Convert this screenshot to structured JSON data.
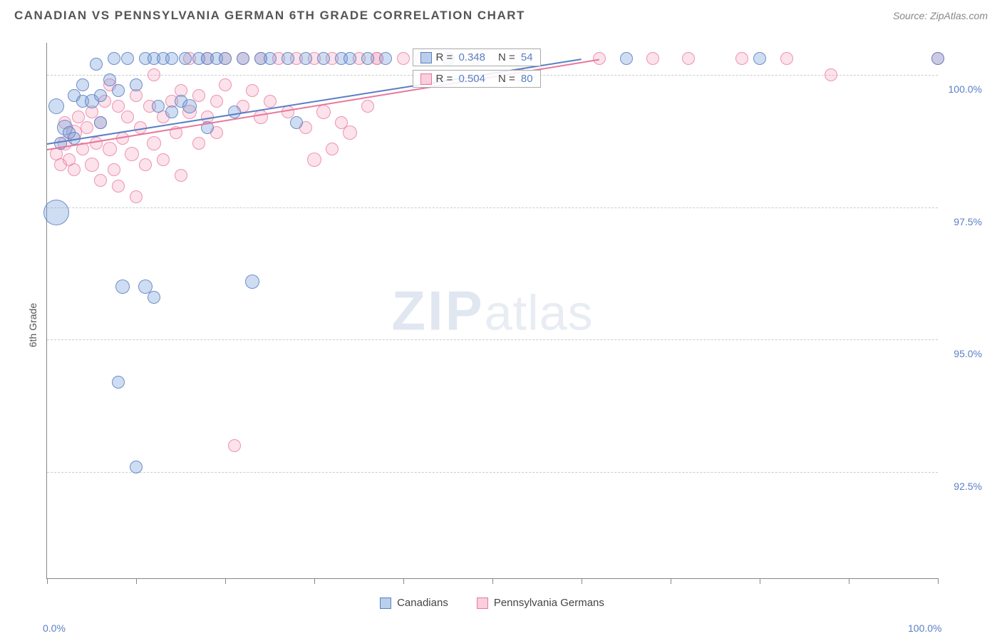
{
  "header": {
    "title": "CANADIAN VS PENNSYLVANIA GERMAN 6TH GRADE CORRELATION CHART",
    "source": "Source: ZipAtlas.com"
  },
  "chart": {
    "type": "scatter",
    "ylabel": "6th Grade",
    "xlim": [
      0,
      100
    ],
    "ylim": [
      90.5,
      100.6
    ],
    "x_ticks": [
      0,
      10,
      20,
      30,
      40,
      50,
      60,
      70,
      80,
      90,
      100
    ],
    "x_tick_labels": {
      "0": "0.0%",
      "100": "100.0%"
    },
    "y_gridlines": [
      92.5,
      95.0,
      97.5,
      100.0
    ],
    "y_tick_labels": [
      "92.5%",
      "95.0%",
      "97.5%",
      "100.0%"
    ],
    "background_color": "#ffffff",
    "grid_color": "#cccccc",
    "axis_color": "#888888",
    "label_color": "#5a7fc4",
    "marker_base_r": 9,
    "watermark": "ZIPatlas",
    "series": [
      {
        "name": "Canadians",
        "color_fill": "rgba(115,159,216,0.35)",
        "color_stroke": "#5a7fc4",
        "trend_color": "#5a7fc4",
        "R": "0.348",
        "N": "54",
        "trend": {
          "x1": 0,
          "y1": 98.7,
          "x2": 60,
          "y2": 100.3
        },
        "points": [
          {
            "x": 1,
            "y": 97.4,
            "r": 18
          },
          {
            "x": 1,
            "y": 99.4,
            "r": 11
          },
          {
            "x": 1.5,
            "y": 98.7,
            "r": 9
          },
          {
            "x": 2,
            "y": 99.0,
            "r": 11
          },
          {
            "x": 2.5,
            "y": 98.9,
            "r": 9
          },
          {
            "x": 3,
            "y": 99.6,
            "r": 9
          },
          {
            "x": 3,
            "y": 98.8,
            "r": 9
          },
          {
            "x": 4,
            "y": 99.5,
            "r": 9
          },
          {
            "x": 4,
            "y": 99.8,
            "r": 9
          },
          {
            "x": 5,
            "y": 99.5,
            "r": 10
          },
          {
            "x": 5.5,
            "y": 100.2,
            "r": 9
          },
          {
            "x": 6,
            "y": 99.6,
            "r": 9
          },
          {
            "x": 6,
            "y": 99.1,
            "r": 9
          },
          {
            "x": 7,
            "y": 99.9,
            "r": 9
          },
          {
            "x": 7.5,
            "y": 100.3,
            "r": 9
          },
          {
            "x": 8,
            "y": 99.7,
            "r": 9
          },
          {
            "x": 8,
            "y": 94.2,
            "r": 9
          },
          {
            "x": 8.5,
            "y": 96.0,
            "r": 10
          },
          {
            "x": 9,
            "y": 100.3,
            "r": 9
          },
          {
            "x": 10,
            "y": 99.8,
            "r": 9
          },
          {
            "x": 10,
            "y": 92.6,
            "r": 9
          },
          {
            "x": 11,
            "y": 96.0,
            "r": 10
          },
          {
            "x": 11,
            "y": 100.3,
            "r": 9
          },
          {
            "x": 12,
            "y": 100.3,
            "r": 9
          },
          {
            "x": 12.5,
            "y": 99.4,
            "r": 9
          },
          {
            "x": 12,
            "y": 95.8,
            "r": 9
          },
          {
            "x": 13,
            "y": 100.3,
            "r": 9
          },
          {
            "x": 14,
            "y": 100.3,
            "r": 9
          },
          {
            "x": 14,
            "y": 99.3,
            "r": 9
          },
          {
            "x": 15,
            "y": 99.5,
            "r": 9
          },
          {
            "x": 15.5,
            "y": 100.3,
            "r": 9
          },
          {
            "x": 16,
            "y": 99.4,
            "r": 10
          },
          {
            "x": 17,
            "y": 100.3,
            "r": 9
          },
          {
            "x": 18,
            "y": 100.3,
            "r": 9
          },
          {
            "x": 18,
            "y": 99.0,
            "r": 9
          },
          {
            "x": 19,
            "y": 100.3,
            "r": 9
          },
          {
            "x": 20,
            "y": 100.3,
            "r": 9
          },
          {
            "x": 21,
            "y": 99.3,
            "r": 9
          },
          {
            "x": 22,
            "y": 100.3,
            "r": 9
          },
          {
            "x": 23,
            "y": 96.1,
            "r": 10
          },
          {
            "x": 24,
            "y": 100.3,
            "r": 9
          },
          {
            "x": 25,
            "y": 100.3,
            "r": 9
          },
          {
            "x": 27,
            "y": 100.3,
            "r": 9
          },
          {
            "x": 28,
            "y": 99.1,
            "r": 9
          },
          {
            "x": 29,
            "y": 100.3,
            "r": 9
          },
          {
            "x": 31,
            "y": 100.3,
            "r": 9
          },
          {
            "x": 33,
            "y": 100.3,
            "r": 9
          },
          {
            "x": 34,
            "y": 100.3,
            "r": 9
          },
          {
            "x": 36,
            "y": 100.3,
            "r": 9
          },
          {
            "x": 38,
            "y": 100.3,
            "r": 9
          },
          {
            "x": 45,
            "y": 100.3,
            "r": 9
          },
          {
            "x": 65,
            "y": 100.3,
            "r": 9
          },
          {
            "x": 80,
            "y": 100.3,
            "r": 9
          },
          {
            "x": 100,
            "y": 100.3,
            "r": 9
          }
        ]
      },
      {
        "name": "Pennsylvania Germans",
        "color_fill": "rgba(245,160,185,0.30)",
        "color_stroke": "#e8789b",
        "trend_color": "#e8789b",
        "R": "0.504",
        "N": "80",
        "trend": {
          "x1": 0,
          "y1": 98.6,
          "x2": 62,
          "y2": 100.3
        },
        "points": [
          {
            "x": 1,
            "y": 98.5,
            "r": 9
          },
          {
            "x": 1.5,
            "y": 98.3,
            "r": 9
          },
          {
            "x": 2,
            "y": 98.7,
            "r": 10
          },
          {
            "x": 2,
            "y": 99.1,
            "r": 9
          },
          {
            "x": 2.5,
            "y": 98.4,
            "r": 9
          },
          {
            "x": 3,
            "y": 98.9,
            "r": 11
          },
          {
            "x": 3,
            "y": 98.2,
            "r": 9
          },
          {
            "x": 3.5,
            "y": 99.2,
            "r": 9
          },
          {
            "x": 4,
            "y": 98.6,
            "r": 9
          },
          {
            "x": 4.5,
            "y": 99.0,
            "r": 9
          },
          {
            "x": 5,
            "y": 98.3,
            "r": 10
          },
          {
            "x": 5,
            "y": 99.3,
            "r": 9
          },
          {
            "x": 5.5,
            "y": 98.7,
            "r": 9
          },
          {
            "x": 6,
            "y": 98.0,
            "r": 9
          },
          {
            "x": 6,
            "y": 99.1,
            "r": 9
          },
          {
            "x": 6.5,
            "y": 99.5,
            "r": 9
          },
          {
            "x": 7,
            "y": 98.6,
            "r": 10
          },
          {
            "x": 7,
            "y": 99.8,
            "r": 9
          },
          {
            "x": 7.5,
            "y": 98.2,
            "r": 9
          },
          {
            "x": 8,
            "y": 99.4,
            "r": 9
          },
          {
            "x": 8,
            "y": 97.9,
            "r": 9
          },
          {
            "x": 8.5,
            "y": 98.8,
            "r": 9
          },
          {
            "x": 9,
            "y": 99.2,
            "r": 9
          },
          {
            "x": 9.5,
            "y": 98.5,
            "r": 10
          },
          {
            "x": 10,
            "y": 99.6,
            "r": 9
          },
          {
            "x": 10,
            "y": 97.7,
            "r": 9
          },
          {
            "x": 10.5,
            "y": 99.0,
            "r": 9
          },
          {
            "x": 11,
            "y": 98.3,
            "r": 9
          },
          {
            "x": 11.5,
            "y": 99.4,
            "r": 9
          },
          {
            "x": 12,
            "y": 98.7,
            "r": 10
          },
          {
            "x": 12,
            "y": 100.0,
            "r": 9
          },
          {
            "x": 13,
            "y": 99.2,
            "r": 9
          },
          {
            "x": 13,
            "y": 98.4,
            "r": 9
          },
          {
            "x": 14,
            "y": 99.5,
            "r": 9
          },
          {
            "x": 14.5,
            "y": 98.9,
            "r": 9
          },
          {
            "x": 15,
            "y": 99.7,
            "r": 9
          },
          {
            "x": 15,
            "y": 98.1,
            "r": 9
          },
          {
            "x": 16,
            "y": 99.3,
            "r": 10
          },
          {
            "x": 16,
            "y": 100.3,
            "r": 9
          },
          {
            "x": 17,
            "y": 99.6,
            "r": 9
          },
          {
            "x": 17,
            "y": 98.7,
            "r": 9
          },
          {
            "x": 18,
            "y": 99.2,
            "r": 9
          },
          {
            "x": 18,
            "y": 100.3,
            "r": 9
          },
          {
            "x": 19,
            "y": 99.5,
            "r": 9
          },
          {
            "x": 19,
            "y": 98.9,
            "r": 9
          },
          {
            "x": 20,
            "y": 99.8,
            "r": 9
          },
          {
            "x": 20,
            "y": 100.3,
            "r": 9
          },
          {
            "x": 21,
            "y": 93.0,
            "r": 9
          },
          {
            "x": 22,
            "y": 99.4,
            "r": 9
          },
          {
            "x": 22,
            "y": 100.3,
            "r": 9
          },
          {
            "x": 23,
            "y": 99.7,
            "r": 9
          },
          {
            "x": 24,
            "y": 99.2,
            "r": 10
          },
          {
            "x": 24,
            "y": 100.3,
            "r": 9
          },
          {
            "x": 25,
            "y": 99.5,
            "r": 9
          },
          {
            "x": 26,
            "y": 100.3,
            "r": 9
          },
          {
            "x": 27,
            "y": 99.3,
            "r": 9
          },
          {
            "x": 28,
            "y": 100.3,
            "r": 9
          },
          {
            "x": 29,
            "y": 99.0,
            "r": 9
          },
          {
            "x": 30,
            "y": 98.4,
            "r": 10
          },
          {
            "x": 30,
            "y": 100.3,
            "r": 9
          },
          {
            "x": 31,
            "y": 99.3,
            "r": 10
          },
          {
            "x": 32,
            "y": 100.3,
            "r": 9
          },
          {
            "x": 32,
            "y": 98.6,
            "r": 9
          },
          {
            "x": 33,
            "y": 99.1,
            "r": 9
          },
          {
            "x": 34,
            "y": 98.9,
            "r": 10
          },
          {
            "x": 35,
            "y": 100.3,
            "r": 9
          },
          {
            "x": 36,
            "y": 99.4,
            "r": 9
          },
          {
            "x": 37,
            "y": 100.3,
            "r": 9
          },
          {
            "x": 37,
            "y": 100.3,
            "r": 9
          },
          {
            "x": 40,
            "y": 100.3,
            "r": 9
          },
          {
            "x": 42,
            "y": 100.3,
            "r": 9
          },
          {
            "x": 48,
            "y": 100.3,
            "r": 9
          },
          {
            "x": 53,
            "y": 100.0,
            "r": 9
          },
          {
            "x": 62,
            "y": 100.3,
            "r": 9
          },
          {
            "x": 68,
            "y": 100.3,
            "r": 9
          },
          {
            "x": 72,
            "y": 100.3,
            "r": 9
          },
          {
            "x": 78,
            "y": 100.3,
            "r": 9
          },
          {
            "x": 83,
            "y": 100.3,
            "r": 9
          },
          {
            "x": 88,
            "y": 100.0,
            "r": 9
          },
          {
            "x": 100,
            "y": 100.3,
            "r": 9
          }
        ]
      }
    ]
  },
  "legend_labels": {
    "R_prefix": "R = ",
    "N_prefix": "N = "
  }
}
